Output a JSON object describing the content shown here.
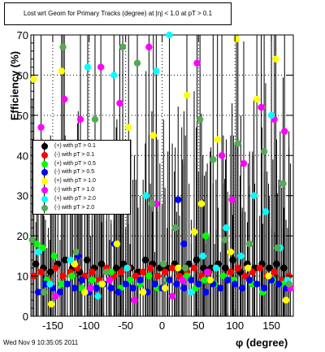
{
  "title": "Lost wrt Geom for Primary Tracks (degree) at |η| < 1.0 at pT > 0.1",
  "date_stamp": "Wed Nov  9 10:35:05 2011",
  "chart_data": {
    "type": "scatter",
    "xlabel": "φ (degree)",
    "ylabel": "Efficiency (%)",
    "xlim": [
      -180,
      180
    ],
    "ylim": [
      0,
      70
    ],
    "x_ticks": [
      "-150",
      "-100",
      "-50",
      "0",
      "50",
      "100",
      "150"
    ],
    "y_ticks": [
      "0",
      "10",
      "20",
      "30",
      "40",
      "50",
      "60",
      "70"
    ],
    "grid": true,
    "legend_placement": "center-left",
    "series": [
      {
        "name": "(+) with pT > 0.1",
        "color": "#000000",
        "points": [
          [
            -173,
            13
          ],
          [
            -163,
            12
          ],
          [
            -153,
            11
          ],
          [
            -143,
            13
          ],
          [
            -133,
            14
          ],
          [
            -123,
            12
          ],
          [
            -113,
            11
          ],
          [
            -103,
            14
          ],
          [
            -93,
            12
          ],
          [
            -83,
            13
          ],
          [
            -73,
            11
          ],
          [
            -63,
            12
          ],
          [
            -53,
            13
          ],
          [
            -43,
            12
          ],
          [
            -33,
            11
          ],
          [
            -23,
            14
          ],
          [
            -13,
            13
          ],
          [
            -3,
            12
          ],
          [
            7,
            12
          ],
          [
            17,
            13
          ],
          [
            27,
            11
          ],
          [
            37,
            13
          ],
          [
            47,
            14
          ],
          [
            57,
            12
          ],
          [
            67,
            12
          ],
          [
            77,
            13
          ],
          [
            87,
            12
          ],
          [
            97,
            14
          ],
          [
            107,
            11
          ],
          [
            117,
            13
          ],
          [
            127,
            12
          ],
          [
            137,
            13
          ],
          [
            147,
            12
          ],
          [
            157,
            13
          ],
          [
            167,
            12
          ]
        ]
      },
      {
        "name": "(-) with pT > 0.1",
        "color": "#ff0000",
        "points": [
          [
            -176,
            10
          ],
          [
            -166,
            11
          ],
          [
            -156,
            9
          ],
          [
            -146,
            12
          ],
          [
            -136,
            10
          ],
          [
            -126,
            11
          ],
          [
            -116,
            12
          ],
          [
            -106,
            10
          ],
          [
            -96,
            11
          ],
          [
            -86,
            9
          ],
          [
            -76,
            12
          ],
          [
            -66,
            10
          ],
          [
            -56,
            11
          ],
          [
            -46,
            12
          ],
          [
            -36,
            10
          ],
          [
            -26,
            11
          ],
          [
            -16,
            12
          ],
          [
            -6,
            10
          ],
          [
            4,
            11
          ],
          [
            14,
            12
          ],
          [
            24,
            10
          ],
          [
            34,
            11
          ],
          [
            44,
            12
          ],
          [
            54,
            10
          ],
          [
            64,
            11
          ],
          [
            74,
            12
          ],
          [
            84,
            10
          ],
          [
            94,
            11
          ],
          [
            104,
            12
          ],
          [
            114,
            10
          ],
          [
            124,
            11
          ],
          [
            134,
            12
          ],
          [
            144,
            10
          ],
          [
            154,
            11
          ],
          [
            164,
            9
          ],
          [
            174,
            10
          ]
        ]
      },
      {
        "name": "(+) with pT > 0.5",
        "color": "#00ff00",
        "points": [
          [
            -172,
            18
          ],
          [
            -158,
            9
          ],
          [
            -148,
            15
          ],
          [
            -138,
            8
          ],
          [
            -124,
            10
          ],
          [
            -110,
            7
          ],
          [
            -96,
            9
          ],
          [
            -84,
            8
          ],
          [
            -70,
            11
          ],
          [
            -57,
            7
          ],
          [
            -44,
            9
          ],
          [
            -30,
            8
          ],
          [
            -18,
            10
          ],
          [
            -6,
            7
          ],
          [
            8,
            9
          ],
          [
            20,
            8
          ],
          [
            34,
            10
          ],
          [
            46,
            7
          ],
          [
            58,
            9
          ],
          [
            72,
            8
          ],
          [
            84,
            10
          ],
          [
            98,
            9
          ],
          [
            110,
            7
          ],
          [
            124,
            8
          ],
          [
            138,
            6
          ],
          [
            152,
            9
          ],
          [
            166,
            8
          ],
          [
            -164,
            17
          ],
          [
            60,
            20
          ]
        ]
      },
      {
        "name": "(-) with pT > 0.5",
        "color": "#0000ff",
        "points": [
          [
            -170,
            6
          ],
          [
            -160,
            8
          ],
          [
            -150,
            7
          ],
          [
            -140,
            6
          ],
          [
            -130,
            8
          ],
          [
            -120,
            7
          ],
          [
            -110,
            9
          ],
          [
            -100,
            6
          ],
          [
            -90,
            7
          ],
          [
            -80,
            8
          ],
          [
            -70,
            7
          ],
          [
            -60,
            6
          ],
          [
            -50,
            8
          ],
          [
            -40,
            7
          ],
          [
            -30,
            9
          ],
          [
            -20,
            6
          ],
          [
            -10,
            8
          ],
          [
            0,
            7
          ],
          [
            10,
            9
          ],
          [
            20,
            8
          ],
          [
            30,
            7
          ],
          [
            40,
            9
          ],
          [
            50,
            8
          ],
          [
            60,
            6
          ],
          [
            70,
            8
          ],
          [
            80,
            7
          ],
          [
            90,
            9
          ],
          [
            100,
            8
          ],
          [
            110,
            7
          ],
          [
            120,
            9
          ],
          [
            130,
            8
          ],
          [
            140,
            7
          ],
          [
            150,
            9
          ],
          [
            160,
            8
          ],
          [
            170,
            7
          ],
          [
            -65,
            18
          ],
          [
            -115,
            15
          ],
          [
            22,
            29
          ],
          [
            30,
            18
          ]
        ]
      },
      {
        "name": "(+) with pT > 1.0",
        "color": "#ffff00",
        "points": [
          [
            -176,
            59
          ],
          [
            -152,
            3
          ],
          [
            -138,
            61
          ],
          [
            -120,
            13
          ],
          [
            -106,
            6
          ],
          [
            -82,
            8
          ],
          [
            -62,
            18
          ],
          [
            -46,
            47
          ],
          [
            -26,
            6
          ],
          [
            -12,
            45
          ],
          [
            4,
            7
          ],
          [
            22,
            12
          ],
          [
            34,
            55
          ],
          [
            44,
            21
          ],
          [
            54,
            28
          ],
          [
            66,
            9
          ],
          [
            76,
            44
          ],
          [
            94,
            16
          ],
          [
            102,
            69
          ],
          [
            118,
            12
          ],
          [
            130,
            54
          ],
          [
            146,
            10
          ],
          [
            156,
            64
          ],
          [
            170,
            4
          ]
        ]
      },
      {
        "name": "(-) with pT > 1.0",
        "color": "#ff00ff",
        "points": [
          [
            -166,
            47
          ],
          [
            -146,
            5
          ],
          [
            -134,
            54
          ],
          [
            -112,
            49
          ],
          [
            -98,
            7
          ],
          [
            -84,
            62
          ],
          [
            -72,
            9
          ],
          [
            -58,
            53
          ],
          [
            -38,
            4
          ],
          [
            -18,
            67
          ],
          [
            -8,
            28
          ],
          [
            14,
            5
          ],
          [
            28,
            9
          ],
          [
            48,
            63
          ],
          [
            62,
            11
          ],
          [
            82,
            40
          ],
          [
            96,
            29
          ],
          [
            112,
            38
          ],
          [
            136,
            52
          ],
          [
            154,
            49
          ],
          [
            168,
            46
          ],
          [
            176,
            7
          ]
        ]
      },
      {
        "name": "(+) with pT > 2.0",
        "color": "#00ffff",
        "points": [
          [
            -170,
            16
          ],
          [
            -154,
            8
          ],
          [
            -126,
            14
          ],
          [
            -102,
            62
          ],
          [
            -88,
            5
          ],
          [
            -66,
            60
          ],
          [
            -48,
            12
          ],
          [
            -22,
            30
          ],
          [
            -8,
            61
          ],
          [
            10,
            70
          ],
          [
            40,
            6
          ],
          [
            56,
            15
          ],
          [
            74,
            12
          ],
          [
            88,
            22
          ],
          [
            108,
            15
          ],
          [
            126,
            30
          ],
          [
            142,
            26
          ],
          [
            150,
            50
          ],
          [
            162,
            17
          ],
          [
            172,
            9
          ]
        ]
      },
      {
        "name": "(-) with pT > 2.0",
        "color": "#55aa55",
        "points": [
          [
            -178,
            19
          ],
          [
            -162,
            6
          ],
          [
            -136,
            67
          ],
          [
            -118,
            16
          ],
          [
            -92,
            49
          ],
          [
            -76,
            11
          ],
          [
            -54,
            67
          ],
          [
            -34,
            63
          ],
          [
            -14,
            28
          ],
          [
            2,
            13
          ],
          [
            18,
            22
          ],
          [
            32,
            12
          ],
          [
            52,
            49
          ],
          [
            70,
            39
          ],
          [
            86,
            19
          ],
          [
            104,
            43
          ],
          [
            120,
            18
          ],
          [
            140,
            41
          ],
          [
            158,
            17
          ],
          [
            166,
            33
          ],
          [
            174,
            8
          ]
        ]
      }
    ]
  }
}
